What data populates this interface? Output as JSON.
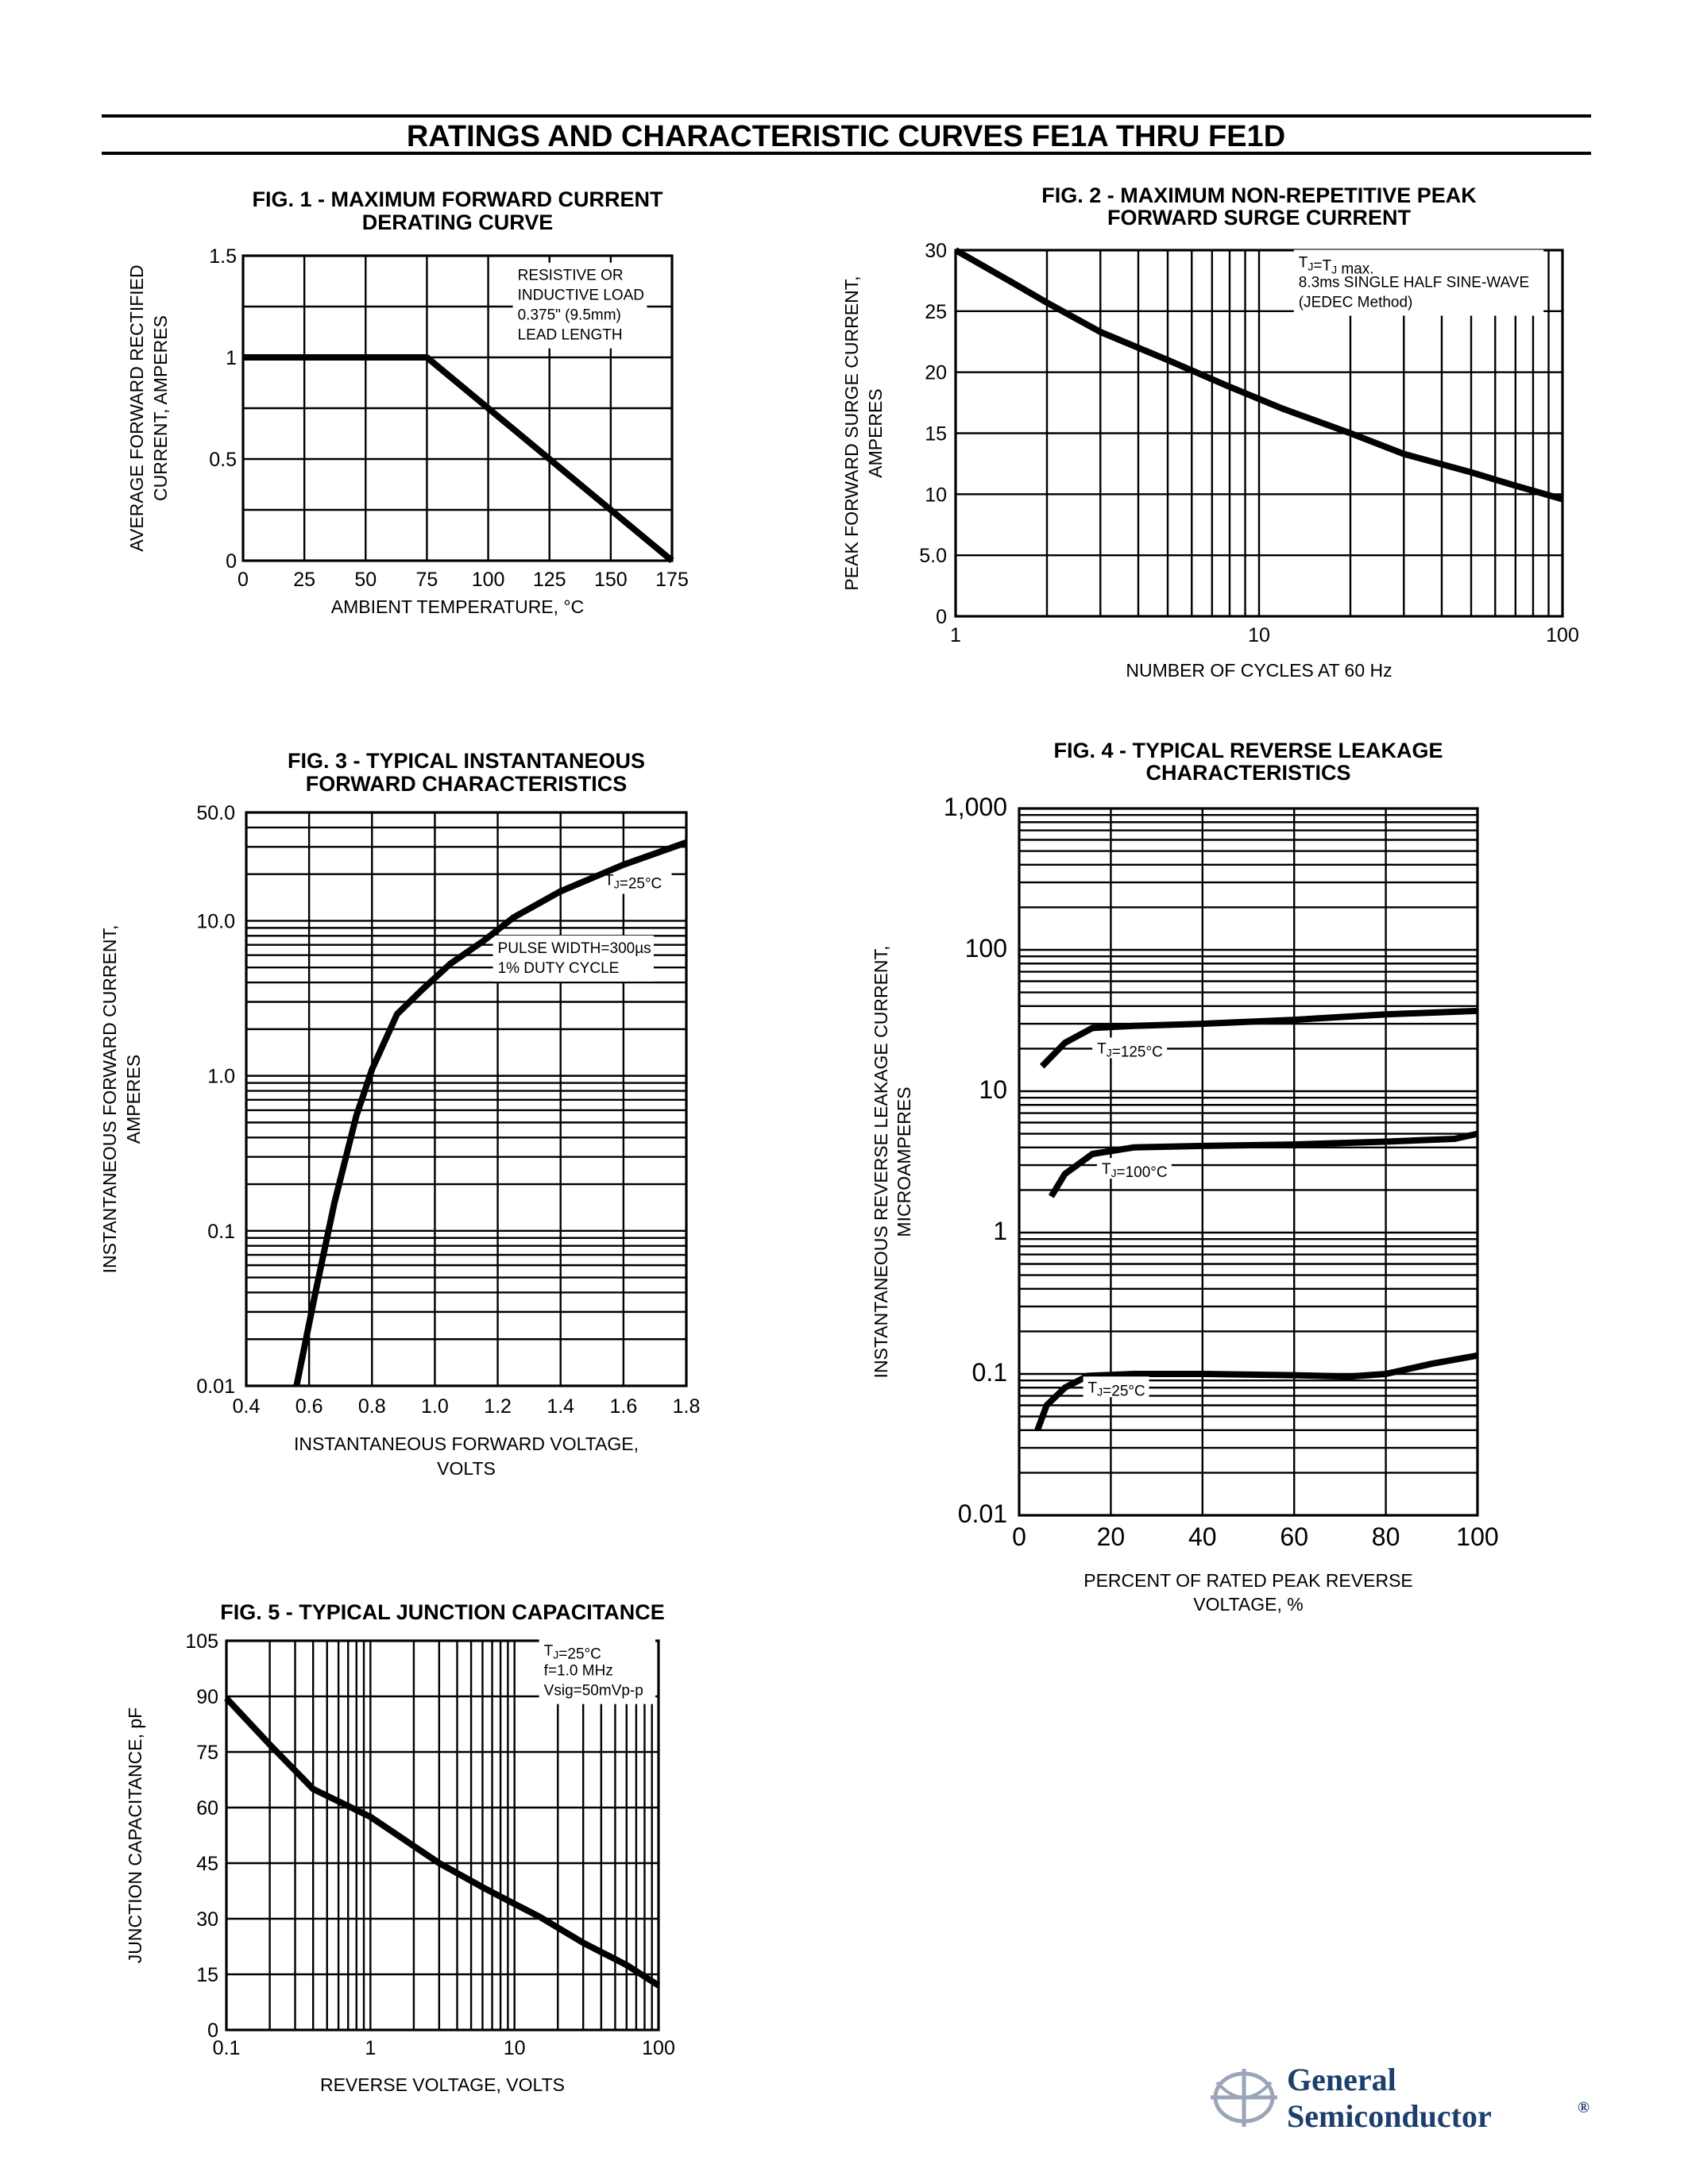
{
  "page": {
    "title": "RATINGS AND CHARACTERISTIC CURVES FE1A THRU FE1D",
    "logo": {
      "line1": "General",
      "line2": "Semiconductor",
      "mark": "®",
      "color": "#1d3f6e"
    }
  },
  "chart_data": [
    {
      "id": "fig1",
      "type": "line",
      "title": "FIG. 1 - MAXIMUM FORWARD CURRENT",
      "subtitle": "DERATING CURVE",
      "xlabel": "AMBIENT TEMPERATURE, °C",
      "ylabel": [
        "AVERAGE FORWARD RECTIFIED",
        "CURRENT, AMPERES"
      ],
      "xscale": "linear",
      "yscale": "linear",
      "xlim": [
        0,
        175
      ],
      "ylim": [
        0,
        1.5
      ],
      "xticks": [
        0,
        25,
        50,
        75,
        100,
        125,
        150,
        175
      ],
      "xtick_labels": [
        "0",
        "25",
        "50",
        "75",
        "100",
        "125",
        "150",
        "175"
      ],
      "yticks": [
        0,
        0.5,
        1,
        1.5
      ],
      "ytick_labels": [
        "0",
        "0.5",
        "1",
        "1.5"
      ],
      "xgrid": [
        0,
        25,
        50,
        75,
        100,
        125,
        150,
        175
      ],
      "ygrid": [
        0,
        0.25,
        0.5,
        0.75,
        1,
        1.25,
        1.5
      ],
      "annotation": {
        "lines": [
          "RESISTIVE OR",
          "INDUCTIVE LOAD",
          "0.375\" (9.5mm)",
          "LEAD LENGTH"
        ],
        "x": 112,
        "y": 1.38
      },
      "series": [
        {
          "x": [
            0,
            75,
            175
          ],
          "y": [
            1,
            1,
            0
          ]
        }
      ]
    },
    {
      "id": "fig2",
      "type": "line",
      "title": "FIG. 2 - MAXIMUM NON-REPETITIVE PEAK",
      "subtitle": "FORWARD SURGE CURRENT",
      "xlabel": "NUMBER OF CYCLES AT 60 Hz",
      "ylabel": [
        "PEAK FORWARD SURGE CURRENT,",
        "AMPERES"
      ],
      "xscale": "log",
      "yscale": "linear",
      "xlim": [
        1,
        100
      ],
      "ylim": [
        0,
        30
      ],
      "xticks": [
        1,
        10,
        100
      ],
      "xtick_labels": [
        "1",
        "10",
        "100"
      ],
      "yticks": [
        0,
        5,
        10,
        15,
        20,
        25,
        30
      ],
      "ytick_labels": [
        "0",
        "5.0",
        "10",
        "15",
        "20",
        "25",
        "30"
      ],
      "xgrid": [
        1,
        2,
        3,
        4,
        5,
        6,
        7,
        8,
        9,
        10,
        20,
        30,
        40,
        50,
        60,
        70,
        80,
        90,
        100
      ],
      "ygrid": [
        0,
        5,
        10,
        15,
        20,
        25,
        30
      ],
      "annotation": {
        "lines": [
          "TJ=TJ max.",
          "8.3ms SINGLE HALF SINE-WAVE",
          "(JEDEC Method)"
        ],
        "x": 13.5,
        "y": 28.6
      },
      "series": [
        {
          "x": [
            1,
            1.5,
            2,
            3,
            5,
            8,
            12,
            20,
            30,
            50,
            70,
            100
          ],
          "y": [
            30,
            27.5,
            25.7,
            23.3,
            21,
            18.8,
            17,
            15,
            13.3,
            11.8,
            10.7,
            9.6
          ]
        }
      ]
    },
    {
      "id": "fig3",
      "type": "line",
      "title": "FIG. 3 - TYPICAL INSTANTANEOUS",
      "subtitle": "FORWARD CHARACTERISTICS",
      "xlabel": [
        "INSTANTANEOUS FORWARD VOLTAGE,",
        "VOLTS"
      ],
      "ylabel": [
        "INSTANTANEOUS FORWARD CURRENT,",
        "AMPERES"
      ],
      "xscale": "linear",
      "yscale": "log",
      "xlim": [
        0.4,
        1.8
      ],
      "ylim": [
        0.01,
        50
      ],
      "xticks": [
        0.4,
        0.6,
        0.8,
        1.0,
        1.2,
        1.4,
        1.6,
        1.8
      ],
      "xtick_labels": [
        "0.4",
        "0.6",
        "0.8",
        "1.0",
        "1.2",
        "1.4",
        "1.6",
        "1.8"
      ],
      "yticks": [
        0.01,
        0.1,
        1,
        10,
        50
      ],
      "ytick_labels": [
        "0.01",
        "0.1",
        "1.0",
        "10.0",
        "50.0"
      ],
      "xgrid": [
        0.4,
        0.6,
        0.8,
        1.0,
        1.2,
        1.4,
        1.6,
        1.8
      ],
      "ygrid": [
        0.01,
        0.02,
        0.03,
        0.04,
        0.05,
        0.06,
        0.07,
        0.08,
        0.09,
        0.1,
        0.2,
        0.3,
        0.4,
        0.5,
        0.6,
        0.7,
        0.8,
        0.9,
        1,
        2,
        3,
        4,
        5,
        6,
        7,
        8,
        9,
        10,
        20,
        30,
        40,
        50
      ],
      "annotations": [
        {
          "lines": [
            "TJ=25°C"
          ],
          "x": 1.54,
          "y": 17
        },
        {
          "lines": [
            "PULSE WIDTH=300µs",
            "1% DUTY CYCLE"
          ],
          "x": 1.2,
          "y": 6.2
        }
      ],
      "series": [
        {
          "x": [
            0.56,
            0.62,
            0.68,
            0.75,
            0.8,
            0.88,
            0.96,
            1.05,
            1.15,
            1.25,
            1.4,
            1.6,
            1.8
          ],
          "y": [
            0.01,
            0.04,
            0.15,
            0.55,
            1.1,
            2.5,
            3.6,
            5.3,
            7.3,
            10.5,
            15.5,
            23,
            32
          ]
        }
      ]
    },
    {
      "id": "fig4",
      "type": "line",
      "title": "FIG. 4 - TYPICAL REVERSE LEAKAGE",
      "subtitle": "CHARACTERISTICS",
      "xlabel": [
        "PERCENT OF RATED PEAK REVERSE",
        "VOLTAGE, %"
      ],
      "ylabel": [
        "INSTANTANEOUS REVERSE LEAKAGE CURRENT,",
        "MICROAMPERES"
      ],
      "xscale": "linear",
      "yscale": "log",
      "xlim": [
        0,
        100
      ],
      "ylim": [
        0.01,
        1000
      ],
      "xticks": [
        0,
        20,
        40,
        60,
        80,
        100
      ],
      "xtick_labels": [
        "0",
        "20",
        "40",
        "60",
        "80",
        "100"
      ],
      "yticks": [
        0.01,
        0.1,
        1,
        10,
        100,
        1000
      ],
      "ytick_labels": [
        "0.01",
        "0.1",
        "1",
        "10",
        "100",
        "1,000"
      ],
      "xgrid": [
        0,
        20,
        40,
        60,
        80,
        100
      ],
      "ygrid": [
        0.01,
        0.02,
        0.03,
        0.04,
        0.05,
        0.06,
        0.07,
        0.08,
        0.09,
        0.1,
        0.2,
        0.3,
        0.4,
        0.5,
        0.6,
        0.7,
        0.8,
        0.9,
        1,
        2,
        3,
        4,
        5,
        6,
        7,
        8,
        9,
        10,
        20,
        30,
        40,
        50,
        60,
        70,
        80,
        90,
        100,
        200,
        300,
        400,
        500,
        600,
        700,
        800,
        900,
        1000
      ],
      "series": [
        {
          "name": "TJ=125°C",
          "label_at": {
            "x": 17,
            "y": 18.5
          },
          "x": [
            5,
            10,
            16,
            25,
            40,
            60,
            80,
            100
          ],
          "y": [
            15,
            22,
            28,
            29,
            30,
            32,
            35,
            37
          ]
        },
        {
          "name": "TJ=100°C",
          "label_at": {
            "x": 18,
            "y": 2.6
          },
          "x": [
            7,
            10,
            16,
            25,
            40,
            60,
            80,
            95,
            100
          ],
          "y": [
            1.8,
            2.6,
            3.6,
            4.0,
            4.1,
            4.2,
            4.4,
            4.6,
            5.0
          ]
        },
        {
          "name": "TJ=25°C",
          "label_at": {
            "x": 15,
            "y": 0.074
          },
          "x": [
            4,
            6,
            10,
            15,
            25,
            40,
            60,
            72,
            80,
            90,
            100
          ],
          "y": [
            0.04,
            0.06,
            0.08,
            0.097,
            0.1,
            0.1,
            0.098,
            0.096,
            0.1,
            0.118,
            0.135
          ]
        }
      ]
    },
    {
      "id": "fig5",
      "type": "line",
      "title": "FIG. 5 - TYPICAL JUNCTION CAPACITANCE",
      "subtitle": "",
      "xlabel": "REVERSE VOLTAGE, VOLTS",
      "ylabel": [
        "JUNCTION CAPACITANCE, pF"
      ],
      "xscale": "log",
      "yscale": "linear",
      "xlim": [
        0.1,
        100
      ],
      "ylim": [
        0,
        105
      ],
      "xticks": [
        0.1,
        1,
        10,
        100
      ],
      "xtick_labels": [
        "0.1",
        "1",
        "10",
        "100"
      ],
      "yticks": [
        0,
        15,
        30,
        45,
        60,
        75,
        90,
        105
      ],
      "ytick_labels": [
        "0",
        "15",
        "30",
        "45",
        "60",
        "75",
        "90",
        "105"
      ],
      "xgrid": [
        0.1,
        0.2,
        0.3,
        0.4,
        0.5,
        0.6,
        0.7,
        0.8,
        0.9,
        1,
        2,
        3,
        4,
        5,
        6,
        7,
        8,
        9,
        10,
        20,
        30,
        40,
        50,
        60,
        70,
        80,
        90,
        100
      ],
      "ygrid": [
        0,
        15,
        30,
        45,
        60,
        75,
        90,
        105
      ],
      "annotation": {
        "lines": [
          "TJ=25°C",
          "f=1.0 MHz",
          "Vsig=50mVp-p"
        ],
        "x": 16,
        "y": 101
      },
      "series": [
        {
          "x": [
            0.1,
            0.2,
            0.4,
            1,
            3,
            6,
            10,
            15,
            30,
            60,
            100
          ],
          "y": [
            89.5,
            77,
            65,
            57.5,
            45,
            38.5,
            34,
            30.5,
            23.5,
            17.5,
            12
          ]
        }
      ]
    }
  ]
}
